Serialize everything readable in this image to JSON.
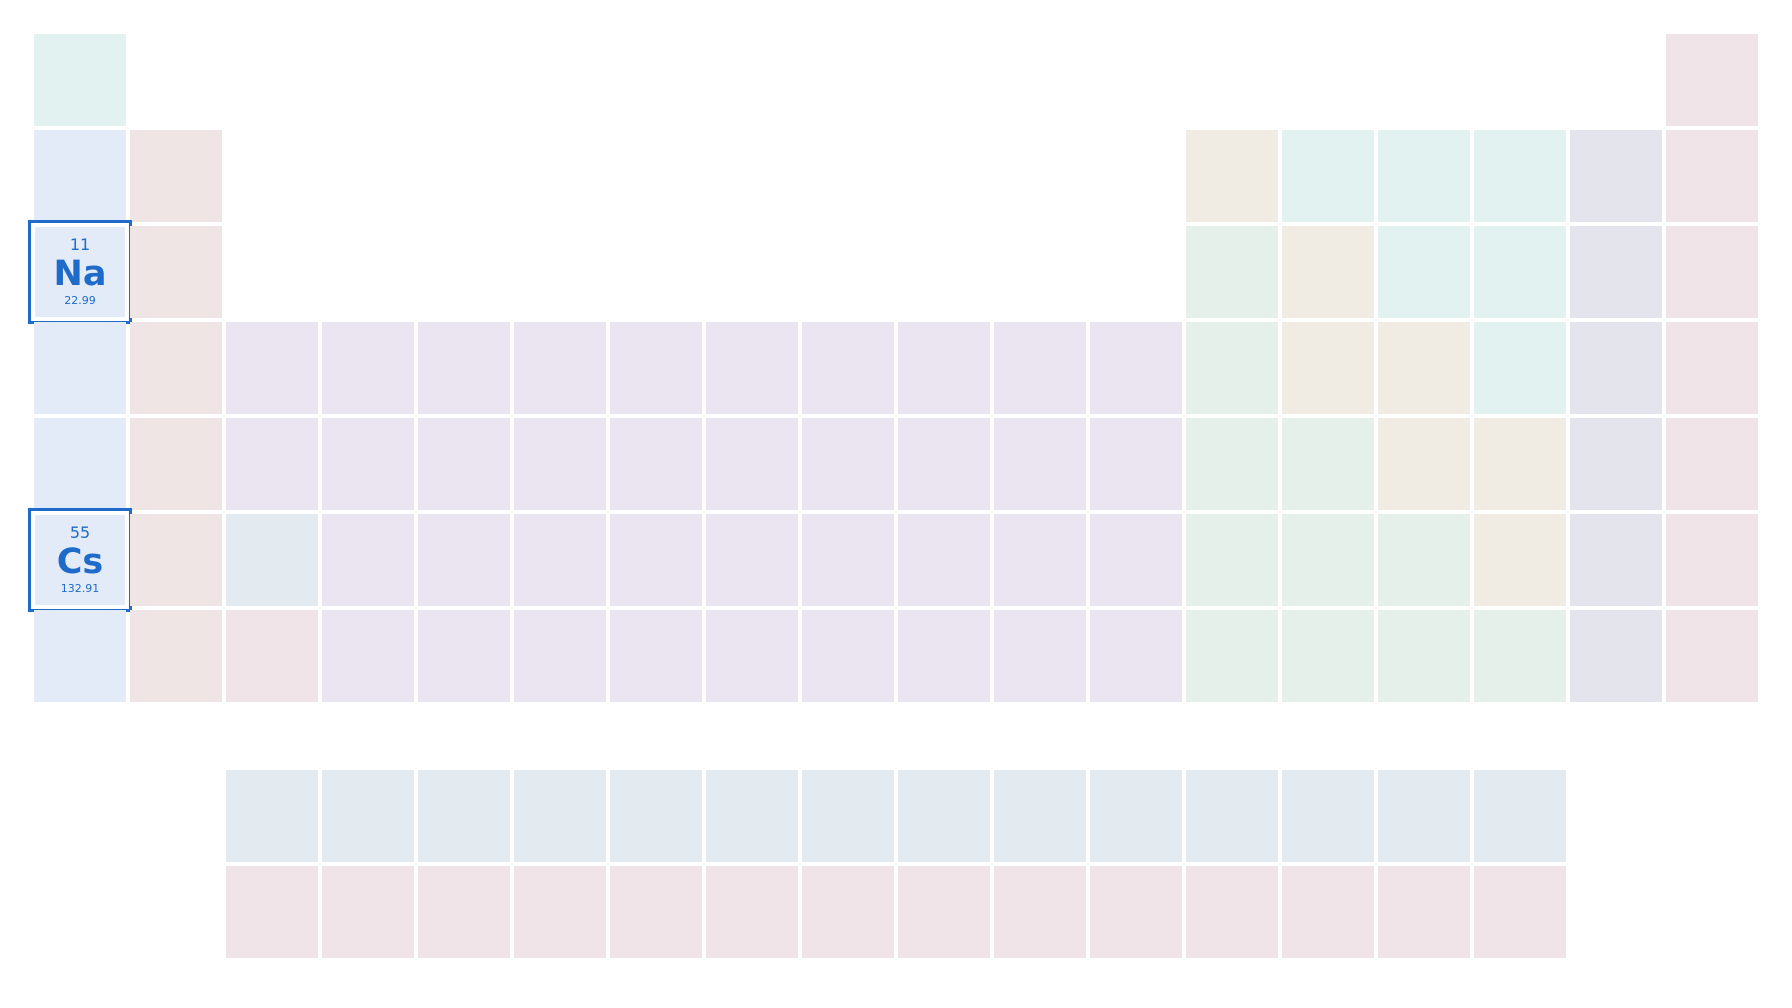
{
  "category_colors": {
    "alkali": "#e4ebf8",
    "alkaline_earth": "#f0e5e5",
    "transition": "#ebe4f1",
    "post_transition": "#e4f0e9",
    "metalloid": "#f0ebe3",
    "nonmetal": "#e1f2f0",
    "halogen": "#e4e4ec",
    "noble_gas": "#f1e4e8",
    "lanthanide": "#e3ebf0",
    "actinide": "#f1e4e8"
  },
  "highlight": {
    "border_color": "#1f6bc9",
    "text_color": "#1f6bc9"
  },
  "layout_rows": [
    "n . . . . . . . . . . . . . . . . g",
    "a e . . . . . . . . . . m n n n h g",
    "A e . . . . . . . . . . p m n n h g",
    "a e t t t t t t t t t t p m m n h g",
    "a e t t t t t t t t t t p p m m h g",
    "A e l t t t t t t t t t p p p m h g",
    "a e c t t t t t t t t t p p p p h g",
    "- - - - - - - - - - - - - - - - - -",
    ". . l l l l l l l l l l l l l l . .",
    ". . c c c c c c c c c c c c c c . ."
  ],
  "highlighted": [
    {
      "number": "11",
      "symbol": "Na",
      "mass": "22.99"
    },
    {
      "number": "55",
      "symbol": "Cs",
      "mass": "132.91"
    }
  ]
}
